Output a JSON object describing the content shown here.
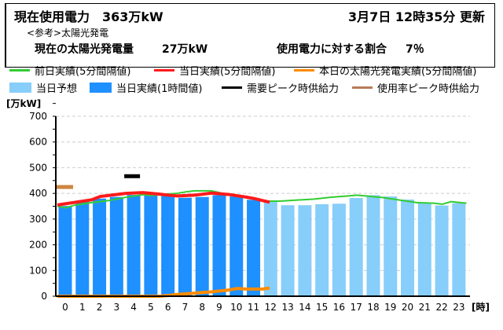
{
  "header": {
    "current_usage_label": "現在使用電力",
    "current_usage_value": "363万kW",
    "updated": "3月7日  12時35分  更新",
    "reference_label": "<参考>太陽光発電",
    "solar_label": "現在の太陽光発電量",
    "solar_value": "27万kW",
    "ratio_label": "使用電力に対する割合",
    "ratio_value": "7％"
  },
  "legend": [
    {
      "label": "前日実績(5分間隔値)",
      "color": "#33cc33",
      "kind": "line"
    },
    {
      "label": "当日実績(5分間隔値)",
      "color": "#ff1a1a",
      "kind": "line"
    },
    {
      "label": "本日の太陽光発電実績(5分間隔値)",
      "color": "#ff8c00",
      "kind": "line"
    },
    {
      "label": "当日予想",
      "color": "#87cefa",
      "kind": "box"
    },
    {
      "label": "当日実績(1時間値)",
      "color": "#1e90ff",
      "kind": "box"
    },
    {
      "label": "需要ピーク時供給力",
      "color": "#000000",
      "kind": "line"
    },
    {
      "label": "使用率ピーク時供給力",
      "color": "#b87c5a",
      "kind": "line"
    }
  ],
  "chart_data": {
    "type": "bar",
    "ylabel": "[万kW]",
    "xlabel": "[時]",
    "ylim": [
      0,
      700
    ],
    "yticks": [
      0,
      100,
      200,
      300,
      400,
      500,
      600,
      700
    ],
    "categories": [
      "0",
      "1",
      "2",
      "3",
      "4",
      "5",
      "6",
      "7",
      "8",
      "9",
      "10",
      "11",
      "12",
      "13",
      "14",
      "15",
      "16",
      "17",
      "18",
      "19",
      "20",
      "21",
      "22",
      "23"
    ],
    "actual_hourly": [
      351,
      368,
      380,
      386,
      394,
      396,
      391,
      383,
      386,
      393,
      388,
      375
    ],
    "forecast_hourly": [
      null,
      null,
      null,
      null,
      null,
      null,
      null,
      null,
      null,
      null,
      null,
      null,
      372,
      354,
      354,
      358,
      360,
      382,
      393,
      388,
      376,
      363,
      353,
      362
    ],
    "prev_day_line": [
      [
        0,
        350
      ],
      [
        0.5,
        344
      ],
      [
        1,
        354
      ],
      [
        2,
        364
      ],
      [
        3,
        372
      ],
      [
        4,
        385
      ],
      [
        5,
        395
      ],
      [
        5.5,
        392
      ],
      [
        6,
        396
      ],
      [
        7,
        400
      ],
      [
        7.5,
        406
      ],
      [
        8,
        410
      ],
      [
        9,
        410
      ],
      [
        10,
        395
      ],
      [
        11,
        386
      ],
      [
        12,
        370
      ],
      [
        13,
        370
      ],
      [
        14,
        374
      ],
      [
        15,
        378
      ],
      [
        16,
        385
      ],
      [
        17,
        390
      ],
      [
        17.5,
        393
      ],
      [
        18,
        390
      ],
      [
        19,
        384
      ],
      [
        20,
        374
      ],
      [
        21,
        364
      ],
      [
        22,
        362
      ],
      [
        22.5,
        358
      ],
      [
        23,
        368
      ],
      [
        23.9,
        362
      ]
    ],
    "today_line": [
      [
        0,
        355
      ],
      [
        1,
        365
      ],
      [
        2,
        375
      ],
      [
        2.5,
        388
      ],
      [
        3,
        392
      ],
      [
        4,
        400
      ],
      [
        5,
        403
      ],
      [
        6,
        397
      ],
      [
        6.5,
        393
      ],
      [
        7,
        390
      ],
      [
        8,
        393
      ],
      [
        9,
        401
      ],
      [
        10,
        396
      ],
      [
        11,
        386
      ],
      [
        11.5,
        380
      ],
      [
        12,
        372
      ],
      [
        12.4,
        366
      ]
    ],
    "solar_line": [
      [
        0,
        0
      ],
      [
        6,
        0
      ],
      [
        6.5,
        3
      ],
      [
        7,
        7
      ],
      [
        8,
        12
      ],
      [
        9,
        17
      ],
      [
        10,
        24
      ],
      [
        10.5,
        30
      ],
      [
        11,
        28
      ],
      [
        12,
        28
      ],
      [
        12.4,
        32
      ]
    ],
    "demand_peak_supply": {
      "hour": 4,
      "value": 467
    },
    "usage_peak_supply": {
      "hour": 0,
      "value": 425
    }
  }
}
